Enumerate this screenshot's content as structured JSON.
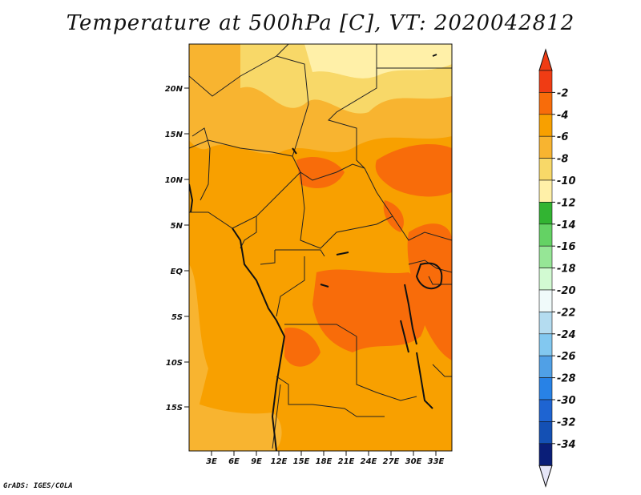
{
  "title": "Temperature at 500hPa [C], VT: 2020042812",
  "credit": "GrADS: IGES/COLA",
  "map": {
    "region": "Central Africa",
    "lat_labels": [
      "20N",
      "15N",
      "10N",
      "5N",
      "EQ",
      "5S",
      "10S",
      "15S"
    ],
    "lon_labels": [
      "3E",
      "6E",
      "9E",
      "12E",
      "15E",
      "18E",
      "21E",
      "24E",
      "27E",
      "30E",
      "33E"
    ],
    "field": "temperature at 500hPa",
    "dominant_range": "-6 to -4",
    "warm_patch_range": "-4 to -2",
    "cool_north_range": "-10 to -6"
  },
  "colorbar": {
    "labels": [
      "-2",
      "-4",
      "-6",
      "-8",
      "-10",
      "-12",
      "-14",
      "-16",
      "-18",
      "-20",
      "-22",
      "-24",
      "-26",
      "-28",
      "-30",
      "-32",
      "-34"
    ],
    "colors": [
      "#f03c14",
      "#f86c0a",
      "#f8a000",
      "#f8b430",
      "#f8d868",
      "#fff0a8",
      "#32b432",
      "#64d264",
      "#96e696",
      "#d2fad2",
      "#f0fafa",
      "#b4dcf0",
      "#82c8f0",
      "#50a0e6",
      "#2882e6",
      "#1e64d2",
      "#1450b4",
      "#0a1e78"
    ],
    "top_arrow_color": "#f03c14",
    "bottom_arrow_color": "#e6e6f8"
  }
}
